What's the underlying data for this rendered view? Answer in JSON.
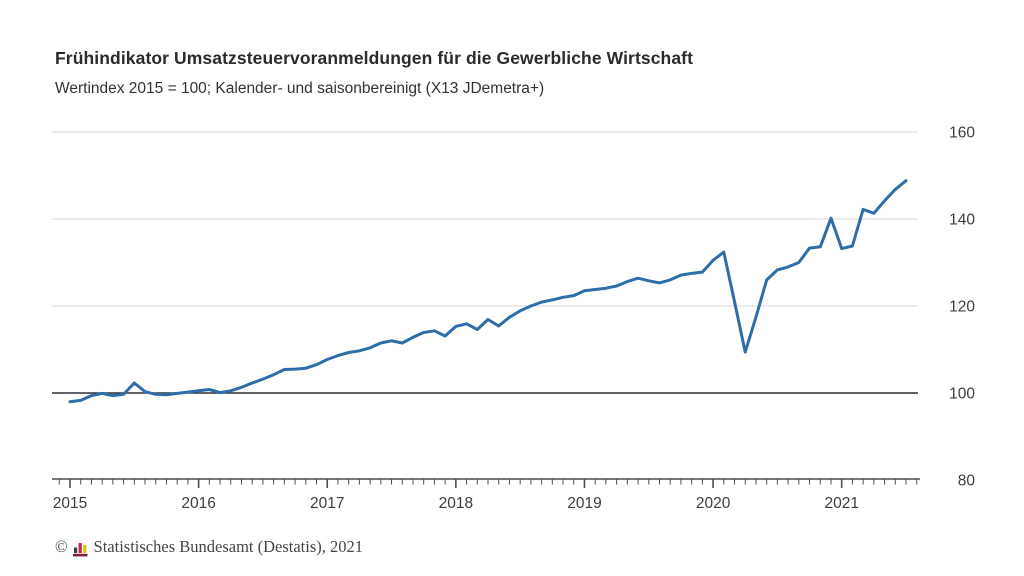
{
  "header": {
    "title": "Frühindikator Umsatzsteuervoranmeldungen für die Gewerbliche Wirtschaft",
    "subtitle": "Wertindex 2015 = 100; Kalender- und saisonbereinigt (X13 JDemetra+)"
  },
  "chart_data": {
    "type": "line",
    "title": "Frühindikator Umsatzsteuervoranmeldungen für die Gewerbliche Wirtschaft",
    "subtitle": "Wertindex 2015 = 100; Kalender- und saisonbereinigt (X13 JDemetra+)",
    "xlabel": "",
    "ylabel": "",
    "ylim": [
      80,
      160
    ],
    "yticks": [
      160,
      140,
      120,
      100,
      80
    ],
    "baseline_value": 100,
    "xticks_years": [
      "2015",
      "2016",
      "2017",
      "2018",
      "2019",
      "2020",
      "2021"
    ],
    "grid": "horizontal",
    "legend": "none",
    "line_color": "#2e6da8",
    "months": [
      "2015-01",
      "2015-02",
      "2015-03",
      "2015-04",
      "2015-05",
      "2015-06",
      "2015-07",
      "2015-08",
      "2015-09",
      "2015-10",
      "2015-11",
      "2015-12",
      "2016-01",
      "2016-02",
      "2016-03",
      "2016-04",
      "2016-05",
      "2016-06",
      "2016-07",
      "2016-08",
      "2016-09",
      "2016-10",
      "2016-11",
      "2016-12",
      "2017-01",
      "2017-02",
      "2017-03",
      "2017-04",
      "2017-05",
      "2017-06",
      "2017-07",
      "2017-08",
      "2017-09",
      "2017-10",
      "2017-11",
      "2017-12",
      "2018-01",
      "2018-02",
      "2018-03",
      "2018-04",
      "2018-05",
      "2018-06",
      "2018-07",
      "2018-08",
      "2018-09",
      "2018-10",
      "2018-11",
      "2018-12",
      "2019-01",
      "2019-02",
      "2019-03",
      "2019-04",
      "2019-05",
      "2019-06",
      "2019-07",
      "2019-08",
      "2019-09",
      "2019-10",
      "2019-11",
      "2019-12",
      "2020-01",
      "2020-02",
      "2020-03",
      "2020-04",
      "2020-05",
      "2020-06",
      "2020-07",
      "2020-08",
      "2020-09",
      "2020-10",
      "2020-11",
      "2020-12",
      "2021-01",
      "2021-02",
      "2021-03",
      "2021-04",
      "2021-05",
      "2021-06",
      "2021-07"
    ],
    "values": [
      98.0,
      98.3,
      99.4,
      99.9,
      99.4,
      99.7,
      102.3,
      100.3,
      99.7,
      99.6,
      99.9,
      100.2,
      100.5,
      100.8,
      100.1,
      100.5,
      101.3,
      102.3,
      103.2,
      104.2,
      105.4,
      105.5,
      105.7,
      106.5,
      107.7,
      108.6,
      109.3,
      109.7,
      110.4,
      111.5,
      112.0,
      111.5,
      112.8,
      113.9,
      114.3,
      113.1,
      115.3,
      115.9,
      114.6,
      116.9,
      115.4,
      117.4,
      118.9,
      120.0,
      120.9,
      121.4,
      122.0,
      122.4,
      123.5,
      123.8,
      124.1,
      124.6,
      125.6,
      126.4,
      125.8,
      125.3,
      126.0,
      127.1,
      127.5,
      127.8,
      130.5,
      132.4,
      121.0,
      109.4,
      117.5,
      126.0,
      128.3,
      129.0,
      130.0,
      133.3,
      133.6,
      140.2,
      133.2,
      133.8,
      142.2,
      141.3,
      144.2,
      146.8,
      148.8
    ]
  },
  "footer": {
    "copyright": "©",
    "source": "Statistisches Bundesamt (Destatis), 2021",
    "logo_icon": "destatis-bar-chart-logo",
    "logo_colors": [
      "#3f3f3f",
      "#c32649",
      "#e3c000",
      "#7d1d38"
    ]
  },
  "colors": {
    "line": "#2e6da8",
    "grid": "#d9d9d9",
    "baseline": "#2f2f2f",
    "axis": "#4d4d4d",
    "tick_label": "#3d3d3d"
  }
}
